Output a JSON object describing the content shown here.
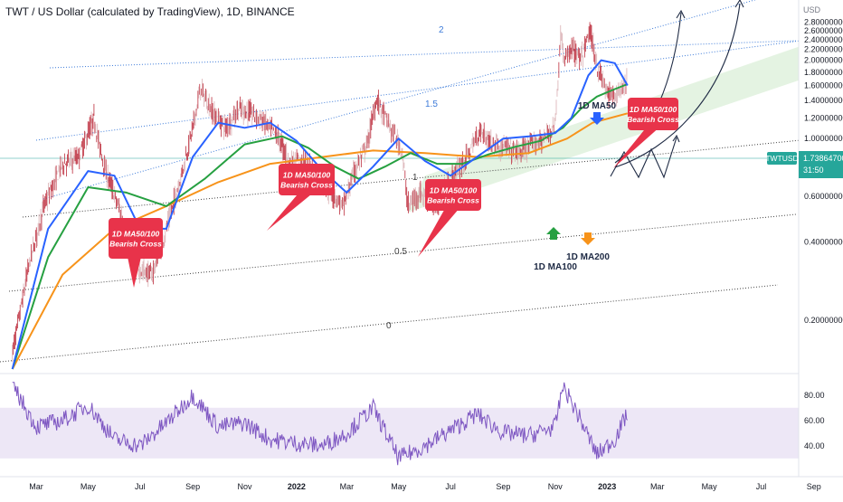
{
  "header": {
    "title": "TWT / US Dollar (calculated by TradingView), 1D, BINANCE"
  },
  "colors": {
    "ma50": "#2962ff",
    "ma100": "#26a041",
    "ma200": "#f7931a",
    "rsi": "#7e57c2",
    "rsi_band": "#ede7f6",
    "price_tag": "#26a69a",
    "candle_up": "#d9aeb2",
    "candle_down": "#bd2c3c",
    "bubble": "#e8334a",
    "channel_upper": "#3d7bd9",
    "channel_mid": "#555555",
    "green_zone": "#cde9cb"
  },
  "chart_data": [
    {
      "type": "line",
      "panel": "price",
      "y_axis_label": "USD",
      "scale": "log",
      "ylim": [
        0.13,
        3.0
      ],
      "x_ticks": [
        "Mar",
        "May",
        "Jul",
        "Sep",
        "Nov",
        "2022",
        "Mar",
        "May",
        "Jul",
        "Sep",
        "Nov",
        "2023",
        "Mar",
        "May",
        "Jul",
        "Sep"
      ],
      "y_ticks": [
        "2.80000000",
        "2.60000000",
        "2.40000000",
        "2.20000000",
        "2.00000000",
        "1.80000000",
        "1.60000000",
        "1.40000000",
        "1.20000000",
        "1.00000000",
        "0.80000000",
        "0.60000000",
        "0.40000000",
        "0.20000000"
      ],
      "y_tick_values": [
        2.8,
        2.6,
        2.4,
        2.2,
        2.0,
        1.8,
        1.6,
        1.4,
        1.2,
        1.0,
        0.8,
        0.6,
        0.4,
        0.2
      ],
      "price_tag": {
        "symbol": "TWTUSD",
        "value": "1.73864700",
        "countdown": "31:50",
        "price": 1.7386
      },
      "channel_levels": [
        "2",
        "1.5",
        "1",
        "0.5",
        "0"
      ],
      "series": [
        {
          "name": "Price",
          "x": [
            "2021-02-01",
            "2021-02-20",
            "2021-03-10",
            "2021-04-01",
            "2021-04-20",
            "2021-05-08",
            "2021-05-20",
            "2021-06-10",
            "2021-06-25",
            "2021-07-15",
            "2021-08-01",
            "2021-08-20",
            "2021-09-01",
            "2021-09-10",
            "2021-09-25",
            "2021-10-10",
            "2021-10-25",
            "2021-11-10",
            "2021-11-25",
            "2021-12-10",
            "2021-12-25",
            "2022-01-10",
            "2022-01-25",
            "2022-02-10",
            "2022-02-25",
            "2022-03-10",
            "2022-03-25",
            "2022-04-05",
            "2022-04-20",
            "2022-05-05",
            "2022-05-12",
            "2022-05-25",
            "2022-06-15",
            "2022-07-01",
            "2022-07-20",
            "2022-08-05",
            "2022-08-20",
            "2022-09-05",
            "2022-09-20",
            "2022-10-05",
            "2022-10-20",
            "2022-11-01",
            "2022-11-08",
            "2022-11-12",
            "2022-11-20",
            "2022-12-01",
            "2022-12-12",
            "2022-12-20",
            "2023-01-01",
            "2023-01-10",
            "2023-01-20",
            "2023-01-25"
          ],
          "values": [
            0.15,
            0.32,
            0.55,
            0.8,
            0.85,
            1.2,
            0.78,
            0.5,
            0.32,
            0.3,
            0.45,
            0.75,
            1.1,
            1.55,
            1.25,
            1.1,
            1.3,
            1.25,
            1.15,
            1.02,
            0.8,
            0.82,
            0.72,
            0.62,
            0.55,
            0.75,
            0.95,
            1.42,
            1.12,
            0.9,
            0.55,
            0.62,
            0.55,
            0.7,
            0.85,
            1.08,
            0.95,
            0.92,
            0.88,
            0.95,
            1.0,
            1.15,
            2.6,
            1.95,
            2.25,
            2.0,
            2.6,
            1.9,
            1.5,
            1.45,
            1.6,
            1.74
          ]
        },
        {
          "name": "1D MA50",
          "x": [
            "2021-02-01",
            "2021-03-15",
            "2021-05-01",
            "2021-06-01",
            "2021-07-01",
            "2021-08-01",
            "2021-09-01",
            "2021-10-01",
            "2021-11-01",
            "2021-12-01",
            "2022-01-01",
            "2022-02-01",
            "2022-03-01",
            "2022-04-01",
            "2022-05-01",
            "2022-06-01",
            "2022-07-01",
            "2022-08-01",
            "2022-09-01",
            "2022-10-01",
            "2022-11-01",
            "2022-11-20",
            "2022-12-10",
            "2022-12-25",
            "2023-01-10",
            "2023-01-25"
          ],
          "values": [
            0.13,
            0.45,
            0.75,
            0.72,
            0.45,
            0.45,
            0.85,
            1.15,
            1.1,
            1.15,
            0.98,
            0.75,
            0.62,
            0.78,
            1.0,
            0.82,
            0.72,
            0.85,
            1.0,
            1.02,
            1.05,
            1.2,
            1.75,
            2.0,
            1.95,
            1.6
          ]
        },
        {
          "name": "1D MA100",
          "x": [
            "2021-02-01",
            "2021-03-15",
            "2021-05-01",
            "2021-06-15",
            "2021-08-01",
            "2021-09-15",
            "2021-11-01",
            "2021-12-15",
            "2022-01-15",
            "2022-02-15",
            "2022-03-15",
            "2022-04-15",
            "2022-05-15",
            "2022-06-15",
            "2022-07-15",
            "2022-08-15",
            "2022-09-15",
            "2022-10-15",
            "2022-11-10",
            "2022-12-01",
            "2022-12-20",
            "2023-01-10",
            "2023-01-25"
          ],
          "values": [
            0.13,
            0.35,
            0.65,
            0.62,
            0.55,
            0.7,
            0.95,
            1.02,
            0.92,
            0.78,
            0.7,
            0.78,
            0.88,
            0.8,
            0.8,
            0.87,
            0.93,
            0.98,
            1.1,
            1.3,
            1.45,
            1.55,
            1.62
          ]
        },
        {
          "name": "1D MA200",
          "x": [
            "2021-02-01",
            "2021-04-01",
            "2021-06-01",
            "2021-08-01",
            "2021-10-01",
            "2021-12-01",
            "2022-02-01",
            "2022-04-01",
            "2022-06-01",
            "2022-08-01",
            "2022-10-01",
            "2022-11-15",
            "2022-12-15",
            "2023-01-25"
          ],
          "values": [
            0.13,
            0.3,
            0.45,
            0.55,
            0.68,
            0.8,
            0.85,
            0.9,
            0.88,
            0.85,
            0.88,
            1.0,
            1.15,
            1.25
          ]
        }
      ],
      "annotations": [
        "1D MA50/100 Bearish Cross",
        "1D MA50/100 Bearish Cross",
        "1D MA50/100 Bearish Cross",
        "1D MA50/100 Bearish Cross",
        "1D MA50",
        "1D MA100",
        "1D MA200"
      ]
    },
    {
      "type": "line",
      "panel": "rsi",
      "y_ticks": [
        "80.00",
        "60.00",
        "40.00"
      ],
      "y_tick_values": [
        80,
        60,
        40
      ],
      "ylim": [
        22,
        92
      ],
      "band": [
        30,
        70
      ],
      "series": [
        {
          "name": "RSI",
          "x": [
            "2021-02-01",
            "2021-03-01",
            "2021-04-01",
            "2021-05-01",
            "2021-06-01",
            "2021-07-01",
            "2021-08-01",
            "2021-09-01",
            "2021-10-01",
            "2021-11-01",
            "2021-12-01",
            "2022-01-01",
            "2022-02-01",
            "2022-03-01",
            "2022-04-01",
            "2022-05-01",
            "2022-06-01",
            "2022-07-01",
            "2022-08-01",
            "2022-09-01",
            "2022-10-01",
            "2022-11-01",
            "2022-11-10",
            "2022-12-01",
            "2022-12-20",
            "2023-01-10",
            "2023-01-25"
          ],
          "values": [
            88,
            55,
            60,
            72,
            45,
            40,
            58,
            80,
            55,
            58,
            45,
            42,
            40,
            50,
            70,
            30,
            40,
            52,
            65,
            50,
            48,
            55,
            88,
            60,
            33,
            45,
            66
          ]
        }
      ]
    }
  ],
  "x_axis_labels": [
    "Mar",
    "May",
    "Jul",
    "Sep",
    "Nov",
    "2022",
    "Mar",
    "May",
    "Jul",
    "Sep",
    "Nov",
    "2023",
    "Mar",
    "May",
    "Jul",
    "Sep"
  ]
}
